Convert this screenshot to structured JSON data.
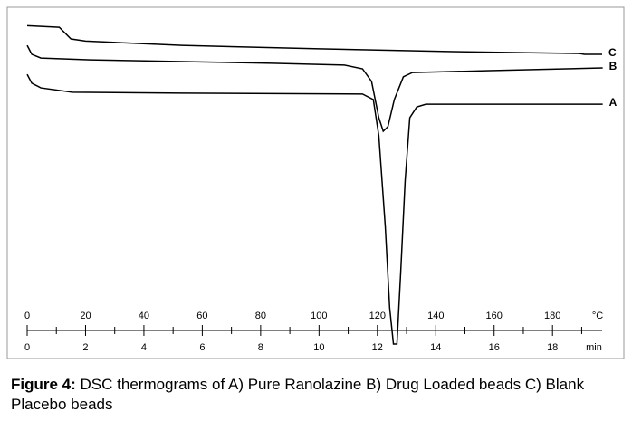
{
  "chart_data": {
    "type": "line",
    "xlabel": "min",
    "x2label": "°C",
    "xlim": [
      0,
      19.7
    ],
    "x2lim": [
      0,
      197
    ],
    "ylim": [
      -5,
      100
    ],
    "xticks": [
      0,
      2,
      4,
      6,
      8,
      10,
      12,
      14,
      16,
      18
    ],
    "xminor_ticks": [
      1,
      3,
      5,
      7,
      9,
      11,
      13,
      15,
      17,
      19
    ],
    "x2ticks": [
      0,
      20,
      40,
      60,
      80,
      100,
      120,
      140,
      160,
      180
    ],
    "series": [
      {
        "name": "C",
        "color": "#000000",
        "x": [
          0,
          1.1,
          1.5,
          2,
          5.3,
          10,
          14.6,
          18.9,
          19.1,
          19.7
        ],
        "values": [
          99,
          98.5,
          94.7,
          94,
          92.6,
          91.5,
          90.6,
          90,
          89.7,
          89.7
        ]
      },
      {
        "name": "B",
        "color": "#000000",
        "x": [
          0,
          0.16,
          0.47,
          2.17,
          8.39,
          10.87,
          11.49,
          11.8,
          12.05,
          12.2,
          12.36,
          12.58,
          12.89,
          13.2,
          15.84,
          19.72
        ],
        "values": [
          92.6,
          89.7,
          88.5,
          87.9,
          86.8,
          86.2,
          85,
          80.9,
          69.1,
          64.7,
          66.2,
          75,
          82.4,
          83.8,
          84.4,
          85.3
        ]
      },
      {
        "name": "A",
        "color": "#000000",
        "x": [
          0,
          0.16,
          0.47,
          1.55,
          5.28,
          11.49,
          11.86,
          12.05,
          12.27,
          12.42,
          12.55,
          12.67,
          12.8,
          12.95,
          13.11,
          13.35,
          13.66,
          19.72
        ],
        "values": [
          83.2,
          80.3,
          78.8,
          77.4,
          77.1,
          76.8,
          75,
          63.2,
          33.8,
          7.4,
          -4.4,
          -4.4,
          19.1,
          48.5,
          69.1,
          72.6,
          73.5,
          73.5
        ]
      }
    ]
  },
  "caption": {
    "label": "Figure 4:",
    "text": "DSC thermograms of A) Pure Ranolazine B) Drug Loaded beads C) Blank Placebo beads"
  }
}
